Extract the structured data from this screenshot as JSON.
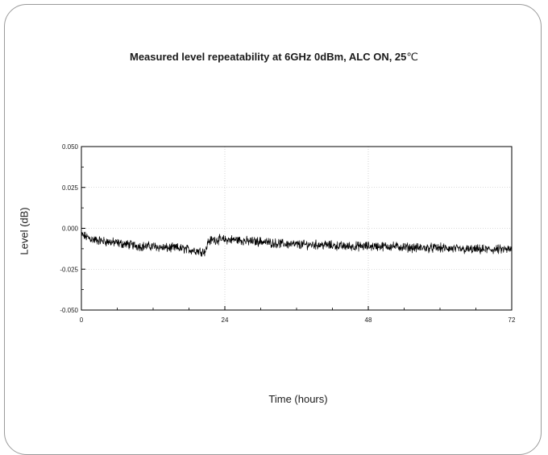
{
  "chart_data": {
    "type": "line",
    "title": "Measured level repeatability at 6GHz 0dBm, ALC ON, 25",
    "title_unit": "℃",
    "xlabel": "Time (hours)",
    "ylabel": "Level (dB)",
    "xlim": [
      0,
      72
    ],
    "ylim": [
      -0.05,
      0.05
    ],
    "x_ticks": [
      "0",
      "24",
      "48",
      "72"
    ],
    "y_ticks": [
      "0.050",
      "0.025",
      "0.000",
      "-0.025",
      "-0.050"
    ],
    "grid": true,
    "series": [
      {
        "color": "#000000",
        "x": [
          0,
          2,
          4,
          6,
          8,
          10,
          12,
          14,
          16,
          18,
          20,
          20.8,
          21.2,
          22,
          24,
          26,
          28,
          30,
          32,
          36,
          40,
          44,
          48,
          52,
          56,
          60,
          64,
          68,
          72
        ],
        "y": [
          -0.004,
          -0.007,
          -0.008,
          -0.009,
          -0.01,
          -0.011,
          -0.011,
          -0.012,
          -0.012,
          -0.013,
          -0.014,
          -0.014,
          -0.008,
          -0.007,
          -0.007,
          -0.007,
          -0.008,
          -0.008,
          -0.009,
          -0.01,
          -0.01,
          -0.011,
          -0.011,
          -0.011,
          -0.012,
          -0.012,
          -0.013,
          -0.013,
          -0.013
        ]
      }
    ]
  }
}
